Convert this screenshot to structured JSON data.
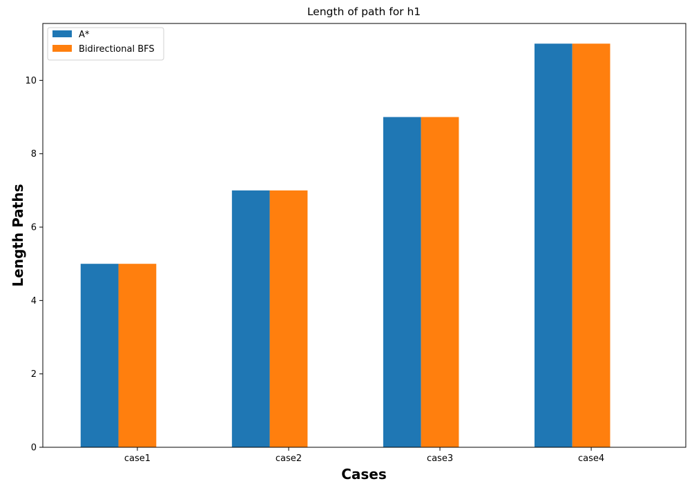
{
  "chart_data": {
    "type": "bar",
    "title": "Length of path for h1",
    "xlabel": "Cases",
    "ylabel": "Length Paths",
    "categories": [
      "case1",
      "case2",
      "case3",
      "case4"
    ],
    "series": [
      {
        "name": "A*",
        "values": [
          5,
          7,
          9,
          11
        ],
        "color": "#1f77b4"
      },
      {
        "name": "Bidirectional BFS",
        "values": [
          5,
          7,
          9,
          11
        ],
        "color": "#ff7f0e"
      }
    ],
    "ylim": [
      0,
      11.55
    ],
    "yticks": [
      0,
      2,
      4,
      6,
      8,
      10
    ],
    "grid": false,
    "legend_position": "top-left"
  }
}
